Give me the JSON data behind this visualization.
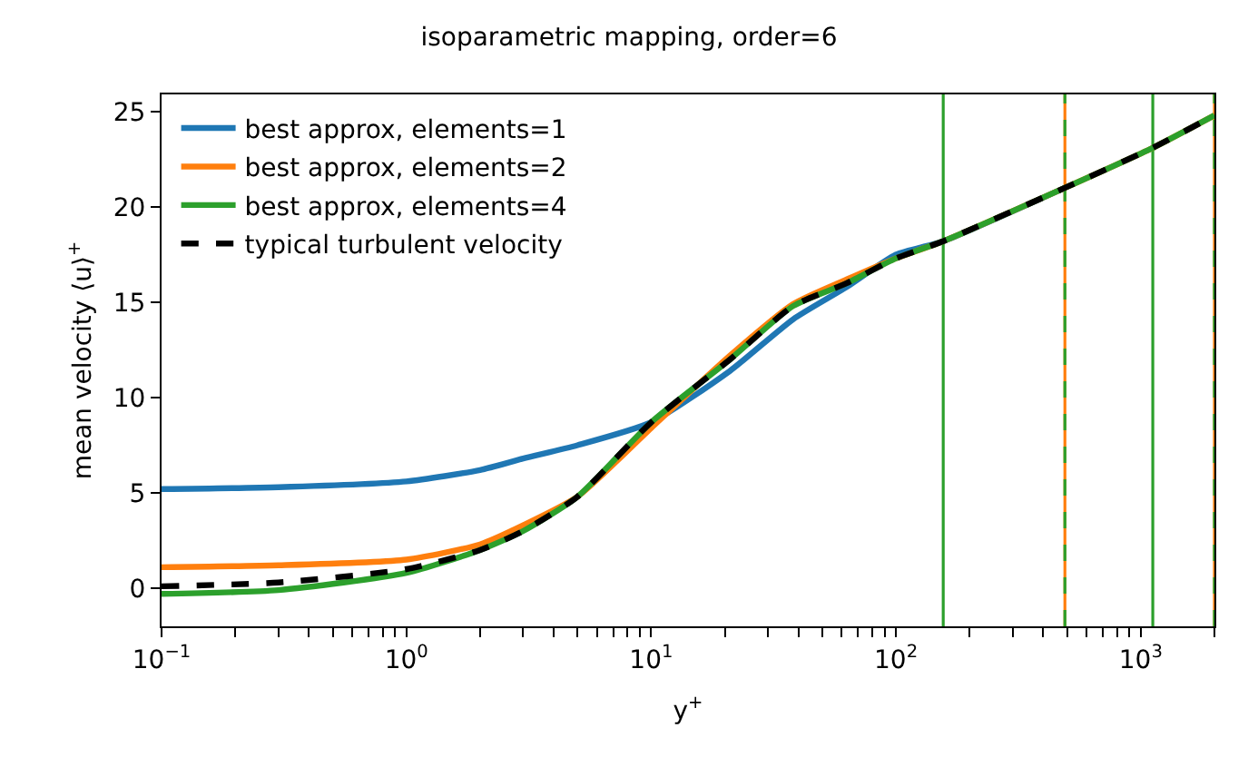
{
  "chart_data": {
    "type": "line",
    "title": "isoparametric mapping, order=6",
    "xlabel": "y$^{+}$",
    "ylabel": "mean velocity ⟨u⟩$^{+}$",
    "log": "x",
    "legend": "top left",
    "line_style": "solid",
    "marker": "none",
    "xlim": [
      0.1,
      2000
    ],
    "ylim": [
      -2.0,
      25.9
    ],
    "xticks": [
      {
        "value": 0.1,
        "label": "10$^{−1}$"
      },
      {
        "value": 0.2,
        "label": null
      },
      {
        "value": 0.3,
        "label": null
      },
      {
        "value": 0.4,
        "label": null
      },
      {
        "value": 0.5,
        "label": null
      },
      {
        "value": 0.6,
        "label": null
      },
      {
        "value": 0.7,
        "label": null
      },
      {
        "value": 0.8,
        "label": null
      },
      {
        "value": 0.9,
        "label": null
      },
      {
        "value": 1,
        "label": "10$^{0}$"
      },
      {
        "value": 2,
        "label": null
      },
      {
        "value": 3,
        "label": null
      },
      {
        "value": 4,
        "label": null
      },
      {
        "value": 5,
        "label": null
      },
      {
        "value": 6,
        "label": null
      },
      {
        "value": 7,
        "label": null
      },
      {
        "value": 8,
        "label": null
      },
      {
        "value": 9,
        "label": null
      },
      {
        "value": 10,
        "label": "10$^{1}$"
      },
      {
        "value": 20,
        "label": null
      },
      {
        "value": 30,
        "label": null
      },
      {
        "value": 40,
        "label": null
      },
      {
        "value": 50,
        "label": null
      },
      {
        "value": 60,
        "label": null
      },
      {
        "value": 70,
        "label": null
      },
      {
        "value": 80,
        "label": null
      },
      {
        "value": 90,
        "label": null
      },
      {
        "value": 100,
        "label": "10$^{2}$"
      },
      {
        "value": 200,
        "label": null
      },
      {
        "value": 300,
        "label": null
      },
      {
        "value": 400,
        "label": null
      },
      {
        "value": 500,
        "label": null
      },
      {
        "value": 600,
        "label": null
      },
      {
        "value": 700,
        "label": null
      },
      {
        "value": 800,
        "label": null
      },
      {
        "value": 900,
        "label": null
      },
      {
        "value": 1000,
        "label": "10$^{3}$"
      },
      {
        "value": 2000,
        "label": null
      }
    ],
    "yticks": [
      0,
      5,
      10,
      15,
      20,
      25
    ],
    "series": [
      {
        "name": "best approx, elements=1",
        "color": "#1f77b4",
        "x": [
          0.1,
          0.3,
          1,
          2,
          3,
          5,
          10,
          21,
          38,
          63,
          100,
          156,
          490
        ],
        "values": [
          5.2,
          5.3,
          5.6,
          6.2,
          6.8,
          7.5,
          8.7,
          11.4,
          14.1,
          15.8,
          17.5,
          18.2,
          21.0
        ]
      },
      {
        "name": "best approx, elements=2",
        "color": "#ff7f0e",
        "x": [
          0.1,
          0.3,
          1,
          2,
          3,
          5,
          10,
          21,
          38,
          63,
          100,
          156,
          490,
          1120,
          2000
        ],
        "values": [
          1.1,
          1.2,
          1.5,
          2.3,
          3.3,
          4.8,
          8.4,
          12.2,
          14.9,
          16.2,
          17.3,
          18.2,
          21.0,
          23.1,
          24.8
        ]
      },
      {
        "name": "best approx, elements=4",
        "color": "#2ca02c",
        "x": [
          0.1,
          0.3,
          1,
          2,
          3,
          5,
          10,
          21,
          38,
          63,
          100,
          156,
          490,
          1120,
          2000
        ],
        "values": [
          -0.3,
          -0.1,
          0.8,
          2.0,
          3.0,
          4.8,
          8.7,
          12.0,
          14.8,
          16.0,
          17.3,
          18.2,
          21.0,
          23.1,
          24.8
        ]
      },
      {
        "name": "typical turbulent velocity",
        "color": "#000000",
        "line_style": "dashed",
        "x": [
          0.1,
          0.3,
          1,
          2,
          3,
          5,
          10,
          21,
          38,
          63,
          100,
          156,
          490,
          1120,
          2000
        ],
        "values": [
          0.1,
          0.3,
          1.0,
          2.0,
          3.0,
          4.8,
          8.7,
          12.0,
          14.8,
          16.0,
          17.3,
          18.2,
          21.0,
          23.1,
          24.8
        ]
      }
    ],
    "ref_lines": [
      {
        "axis": "x",
        "value": 156,
        "color": "#2ca02c",
        "line_style": "solid"
      },
      {
        "axis": "x",
        "value": 490,
        "color": "#ff7f0e",
        "line_style": "solid"
      },
      {
        "axis": "x",
        "value": 490,
        "color": "#2ca02c",
        "line_style": "dashed"
      },
      {
        "axis": "x",
        "value": 1120,
        "color": "#2ca02c",
        "line_style": "solid"
      },
      {
        "axis": "x",
        "value": 2000,
        "color": "#ff7f0e",
        "line_style": "solid"
      },
      {
        "axis": "x",
        "value": 2000,
        "color": "#2ca02c",
        "line_style": "dashed"
      }
    ]
  }
}
